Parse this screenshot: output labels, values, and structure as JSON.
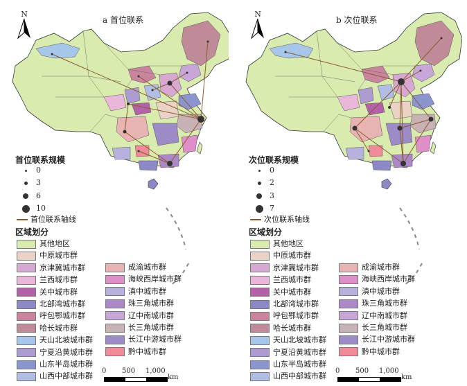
{
  "panels": [
    {
      "title": "a 首位联系",
      "north_letter": "N",
      "scale_title": "首位联系规模",
      "scale_values": [
        "0",
        "3",
        "6",
        "10"
      ],
      "axis_label": "首位联系轴线",
      "region_title": "区域划分"
    },
    {
      "title": "b 次位联系",
      "north_letter": "N",
      "scale_title": "次位联系规模",
      "scale_values": [
        "0",
        "2",
        "3",
        "7"
      ],
      "axis_label": "次位联系轴线",
      "region_title": "区域划分"
    }
  ],
  "regions_left": [
    {
      "label": "其他地区",
      "color": "#d9ebae"
    },
    {
      "label": "中原城市群",
      "color": "#ead3c6"
    },
    {
      "label": "京津冀城市群",
      "color": "#d6a8d2"
    },
    {
      "label": "兰西城市群",
      "color": "#e8b7da"
    },
    {
      "label": "关中城市群",
      "color": "#b462a8"
    },
    {
      "label": "北部湾城市群",
      "color": "#8b89c6"
    },
    {
      "label": "呼包鄂城市群",
      "color": "#c9859e"
    },
    {
      "label": "哈长城市群",
      "color": "#c08b98"
    },
    {
      "label": "天山北坡城市群",
      "color": "#a6c6ea"
    },
    {
      "label": "宁夏沿黄城市群",
      "color": "#ad9cd2"
    },
    {
      "label": "山东半岛城市群",
      "color": "#8a94cf"
    },
    {
      "label": "山西中部城市群",
      "color": "#b1bde3"
    }
  ],
  "regions_right": [
    {
      "label": "成渝城市群",
      "color": "#e8b3b3"
    },
    {
      "label": "海峡西岸城市群",
      "color": "#de8fc8"
    },
    {
      "label": "滇中城市群",
      "color": "#b9b1dd"
    },
    {
      "label": "珠三角城市群",
      "color": "#ad88c9"
    },
    {
      "label": "辽中南城市群",
      "color": "#c9a6d8"
    },
    {
      "label": "长三角城市群",
      "color": "#c8b2b5"
    },
    {
      "label": "长江中游城市群",
      "color": "#9c8bc6"
    },
    {
      "label": "黔中城市群",
      "color": "#f08a96"
    }
  ],
  "scalebar": {
    "tick_0": "0",
    "tick_500": "500",
    "tick_1000": "1,000",
    "unit": "km"
  },
  "colors": {
    "land": "#d9ebae",
    "border": "#333333",
    "axis": "#8a5a2b",
    "node": "#333333"
  },
  "icons": {
    "north": "north-arrow-icon"
  }
}
